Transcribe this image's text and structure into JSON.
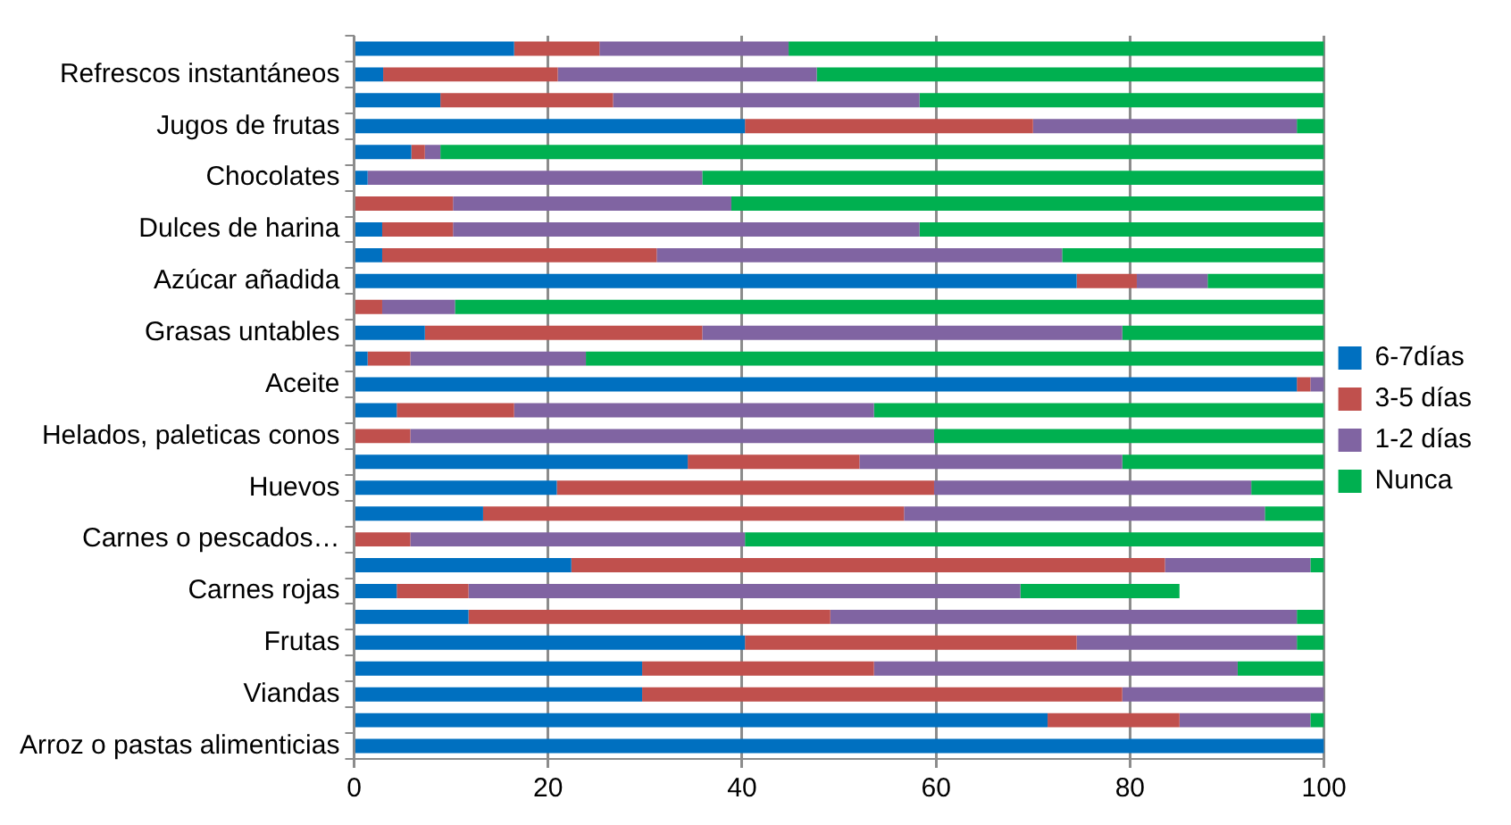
{
  "chart_data": {
    "type": "bar",
    "orientation": "horizontal",
    "stacked": true,
    "categories": [
      null,
      "Refrescos instantáneos",
      null,
      "Jugos de frutas",
      null,
      "Chocolates",
      null,
      "Dulces de harina",
      null,
      "Azúcar añadida",
      null,
      "Grasas untables",
      null,
      "Aceite",
      null,
      "Helados, paleticas conos",
      null,
      "Huevos",
      null,
      "Carnes o pescados…",
      null,
      "Carnes rojas",
      null,
      "Frutas",
      null,
      "Viandas",
      null,
      "Arroz o pastas alimenticias"
    ],
    "series": [
      {
        "name": "6-7días",
        "color": "#0070c0",
        "values": [
          16.5,
          3,
          8.9,
          40.3,
          5.9,
          1.4,
          0,
          2.9,
          2.9,
          74.5,
          0,
          7.3,
          1.4,
          97.2,
          4.4,
          0,
          34.4,
          20.9,
          13.3,
          0,
          22.4,
          4.4,
          11.8,
          40.3,
          29.7,
          29.7,
          71.5,
          100
        ]
      },
      {
        "name": "3-5 días",
        "color": "#c0504d",
        "values": [
          8.8,
          18,
          17.8,
          29.7,
          1.4,
          0,
          10.2,
          7.3,
          28.3,
          6.2,
          2.9,
          28.6,
          4.4,
          1.4,
          12.1,
          5.8,
          17.7,
          38.9,
          43.4,
          5.8,
          61.2,
          7.4,
          37.3,
          34.2,
          23.9,
          49.5,
          13.6,
          0
        ]
      },
      {
        "name": "1-2 días",
        "color": "#8064a2",
        "values": [
          19.5,
          26.7,
          31.6,
          27.2,
          1.6,
          34.5,
          28.7,
          48.1,
          41.8,
          7.3,
          7.5,
          43.3,
          18.1,
          1.4,
          37.1,
          54,
          27.1,
          32.7,
          37.2,
          34.5,
          15,
          56.9,
          48.1,
          22.7,
          37.5,
          20.8,
          13.5,
          0
        ]
      },
      {
        "name": "Nunca",
        "color": "#00b050",
        "values": [
          55.2,
          52.3,
          41.7,
          2.8,
          91.1,
          64.1,
          61.1,
          41.7,
          27,
          12,
          89.6,
          20.8,
          76.1,
          0,
          46.4,
          40.2,
          20.8,
          7.5,
          6.1,
          59.7,
          1.4,
          16.4,
          2.8,
          2.8,
          8.9,
          0,
          1.4,
          0
        ]
      }
    ],
    "xlim": [
      0,
      100
    ],
    "xticks": [
      0,
      20,
      40,
      60,
      80,
      100
    ],
    "grid": "x",
    "legend": "right"
  }
}
